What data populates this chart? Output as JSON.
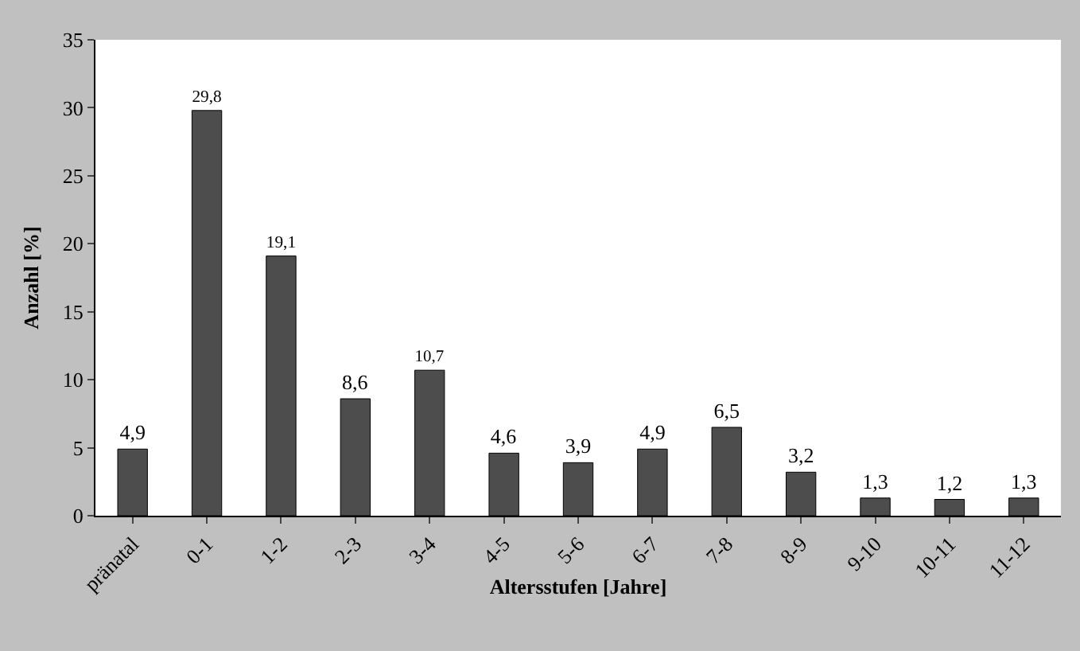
{
  "chart_data": {
    "type": "bar",
    "xlabel": "Altersstufen [Jahre]",
    "ylabel": "Anzahl [%]",
    "categories": [
      "pränatal",
      "0-1",
      "1-2",
      "2-3",
      "3-4",
      "4-5",
      "5-6",
      "6-7",
      "7-8",
      "8-9",
      "9-10",
      "10-11",
      "11-12"
    ],
    "values": [
      4.9,
      29.8,
      19.1,
      8.6,
      10.7,
      4.6,
      3.9,
      4.9,
      6.5,
      3.2,
      1.3,
      1.2,
      1.3
    ],
    "value_labels": [
      "4,9",
      "29,8",
      "19,1",
      "8,6",
      "10,7",
      "4,6",
      "3,9",
      "4,9",
      "6,5",
      "3,2",
      "1,3",
      "1,2",
      "1,3"
    ],
    "color": "#4d4d4d",
    "ylim": [
      0,
      35
    ],
    "yticks": [
      0,
      5,
      10,
      15,
      20,
      25,
      30,
      35
    ]
  }
}
